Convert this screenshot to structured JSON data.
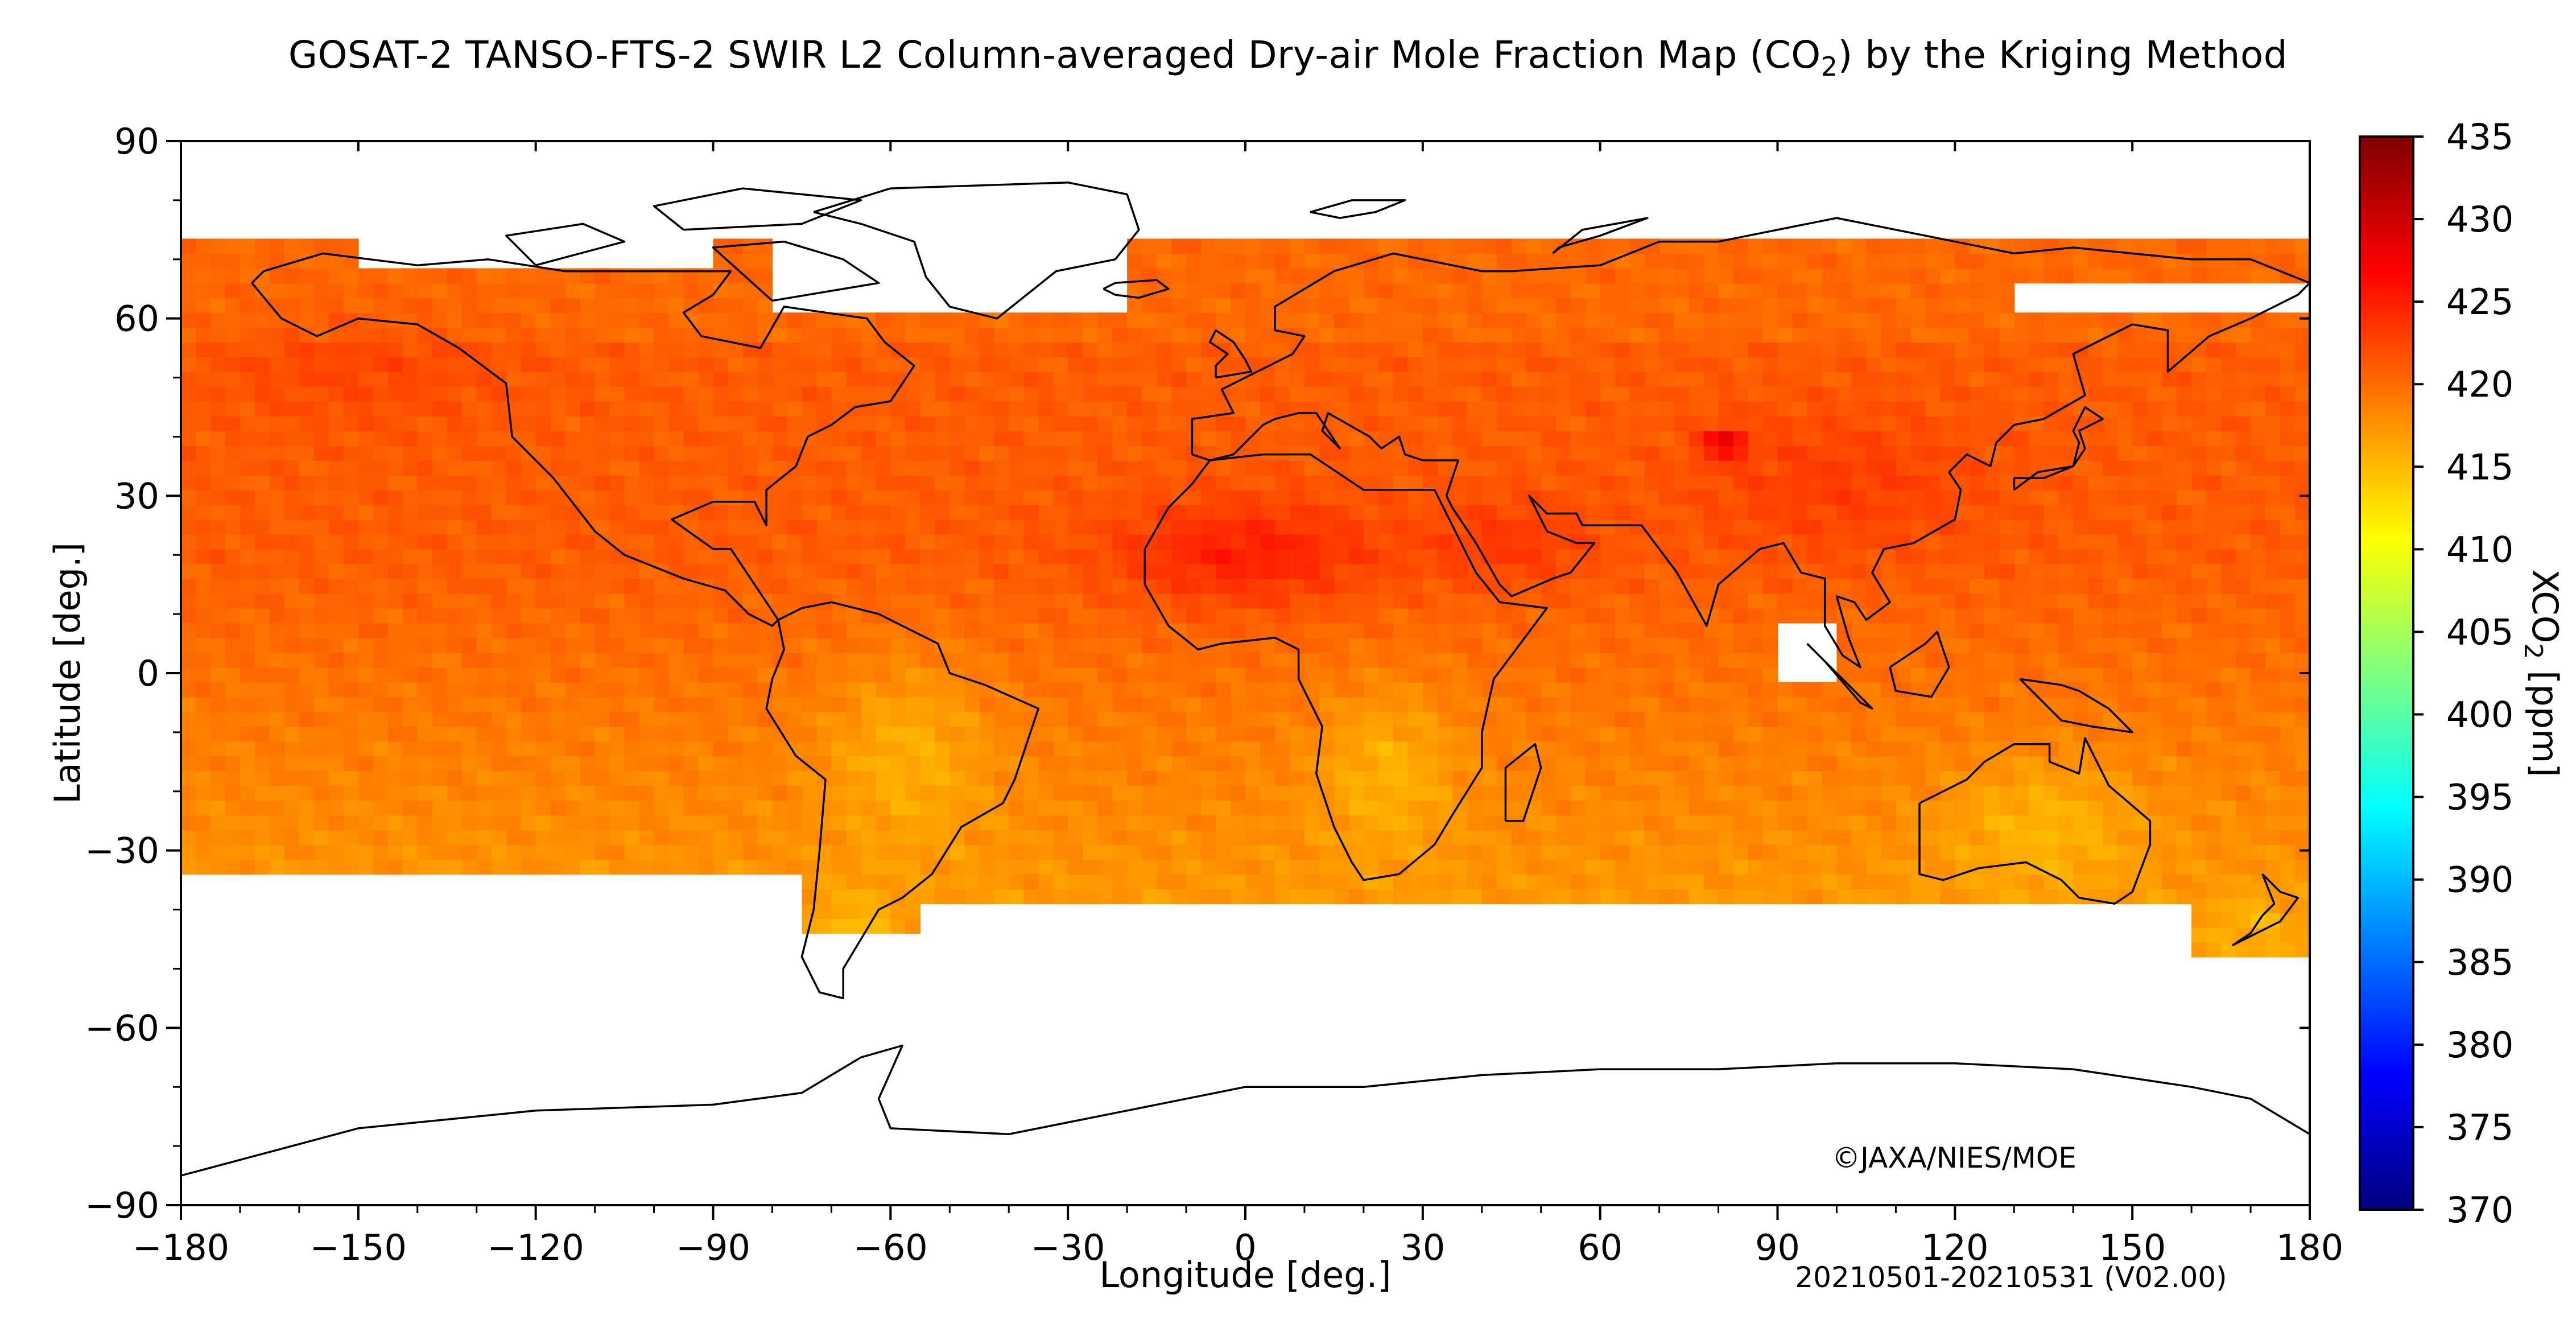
{
  "title": {
    "prefix": "GOSAT-2 TANSO-FTS-2 SWIR L2 Column-averaged Dry-air Mole Fraction Map (CO",
    "subscript": "2",
    "suffix": ") by the Kriging Method"
  },
  "credit": "©JAXA/NIES/MOE",
  "period": "20210501-20210531 (V02.00)",
  "chart_data": {
    "type": "heatmap",
    "xlabel": "Longitude [deg.]",
    "ylabel": "Latitude [deg.]",
    "xlim": [
      -180,
      180
    ],
    "ylim": [
      -90,
      90
    ],
    "x_ticks": [
      -180,
      -150,
      -120,
      -90,
      -60,
      -30,
      0,
      30,
      60,
      90,
      120,
      150,
      180
    ],
    "y_ticks": [
      -90,
      -60,
      -30,
      0,
      30,
      60,
      90
    ],
    "x_tick_labels": [
      "−180",
      "−150",
      "−120",
      "−90",
      "−60",
      "−30",
      "0",
      "30",
      "60",
      "90",
      "120",
      "150",
      "180"
    ],
    "y_tick_labels": [
      "−90",
      "−60",
      "−30",
      "0",
      "30",
      "60",
      "90"
    ],
    "data_lat_range": [
      -44,
      72
    ],
    "colorbar": {
      "label_prefix": "XCO",
      "label_sub": "2",
      "label_suffix": " [ppm]",
      "range": [
        370,
        435
      ],
      "ticks": [
        370,
        375,
        380,
        385,
        390,
        395,
        400,
        405,
        410,
        415,
        420,
        425,
        430,
        435
      ],
      "tick_labels": [
        "370",
        "375",
        "380",
        "385",
        "390",
        "395",
        "400",
        "405",
        "410",
        "415",
        "420",
        "425",
        "430",
        "435"
      ],
      "colors": [
        "#00007f",
        "#0000ff",
        "#007fff",
        "#00ffff",
        "#7fff7f",
        "#ffff00",
        "#ff7f00",
        "#ff0000",
        "#7f0000"
      ]
    },
    "typical_values": {
      "northern_hemisphere": 421,
      "tropics": 419,
      "southern_hemisphere": 416,
      "sahara_max": 425,
      "central_asia_max": 428
    }
  }
}
